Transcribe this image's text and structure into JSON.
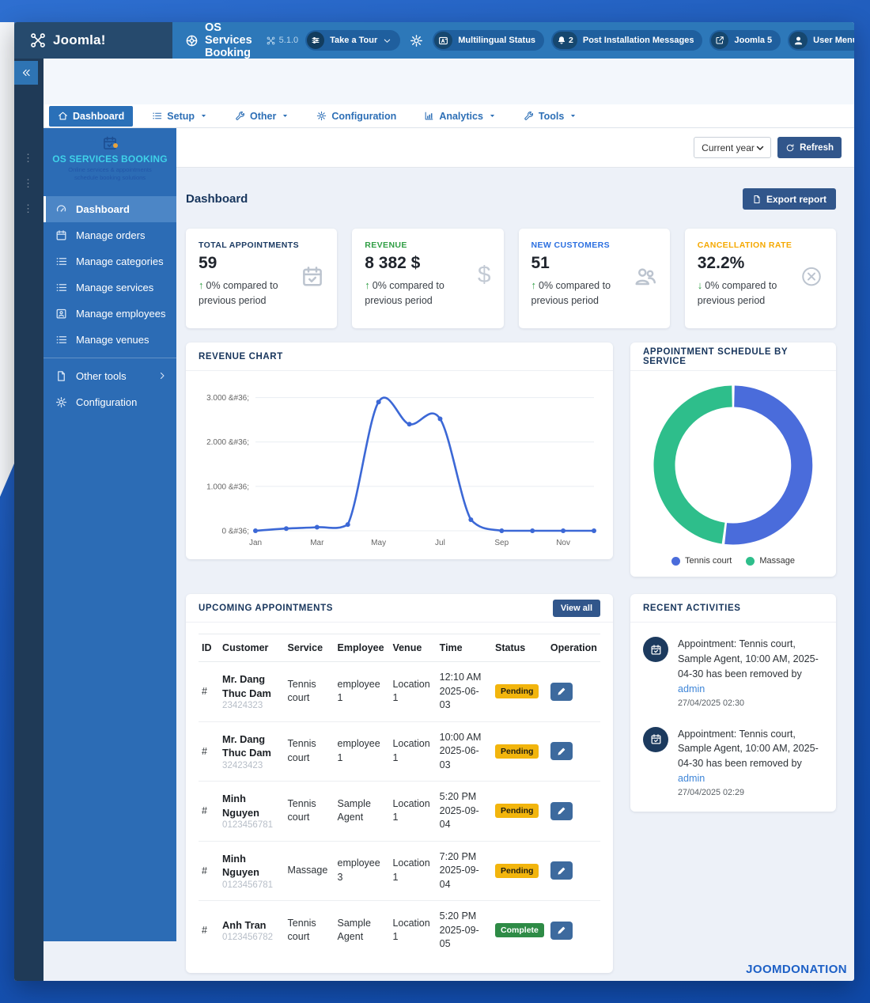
{
  "topbar": {
    "logo_text": "Joomla!",
    "app_title": "OS Services Booking",
    "version": "5.1.0",
    "tour_label": "Take a Tour",
    "multilingual_label": "Multilingual Status",
    "messages_count": "2",
    "messages_label": "Post Installation Messages",
    "joomla5_label": "Joomla 5",
    "user_menu_label": "User Menu"
  },
  "nav_tabs": [
    {
      "label": "Dashboard",
      "icon": "home",
      "caret": false,
      "active": true
    },
    {
      "label": "Setup",
      "icon": "list",
      "caret": true,
      "active": false
    },
    {
      "label": "Other",
      "icon": "wrench",
      "caret": true,
      "active": false
    },
    {
      "label": "Configuration",
      "icon": "gear",
      "caret": false,
      "active": false
    },
    {
      "label": "Analytics",
      "icon": "chart",
      "caret": true,
      "active": false
    },
    {
      "label": "Tools",
      "icon": "wrench",
      "caret": true,
      "active": false
    }
  ],
  "sidebar": {
    "brand_title": "OS SERVICES BOOKING",
    "brand_tagline_1": "Online services & appointments",
    "brand_tagline_2": "schedule booking solutions",
    "items": [
      {
        "label": "Dashboard",
        "icon": "gauge",
        "active": true,
        "chevron": false
      },
      {
        "label": "Manage orders",
        "icon": "calendar",
        "active": false,
        "chevron": false
      },
      {
        "label": "Manage categories",
        "icon": "list",
        "active": false,
        "chevron": false
      },
      {
        "label": "Manage services",
        "icon": "list",
        "active": false,
        "chevron": false
      },
      {
        "label": "Manage employees",
        "icon": "id-card",
        "active": false,
        "chevron": false
      },
      {
        "label": "Manage venues",
        "icon": "list",
        "active": false,
        "chevron": false
      },
      {
        "label": "Other tools",
        "icon": "file",
        "active": false,
        "chevron": true
      },
      {
        "label": "Configuration",
        "icon": "gear",
        "active": false,
        "chevron": false
      }
    ]
  },
  "toolbar": {
    "period_select": "Current year",
    "refresh_label": "Refresh"
  },
  "page": {
    "title": "Dashboard",
    "export_label": "Export report"
  },
  "stats": [
    {
      "label": "TOTAL APPOINTMENTS",
      "label_color": "#1c3b63",
      "value": "59",
      "arrow": "↑",
      "trend": "0% compared to previous period",
      "icon": "calendar-check"
    },
    {
      "label": "REVENUE",
      "label_color": "#2f9e44",
      "value": "8 382 $",
      "arrow": "↑",
      "trend": "0% compared to previous period",
      "icon": "dollar"
    },
    {
      "label": "NEW CUSTOMERS",
      "label_color": "#2b6fe0",
      "value": "51",
      "arrow": "↑",
      "trend": "0% compared to previous period",
      "icon": "users"
    },
    {
      "label": "CANCELLATION RATE",
      "label_color": "#f5a800",
      "value": "32.2%",
      "arrow": "↓",
      "trend": "0% compared to previous period",
      "icon": "x-circle"
    }
  ],
  "panels": {
    "revenue_title": "REVENUE CHART",
    "schedule_title": "APPOINTMENT SCHEDULE BY SERVICE",
    "upcoming_title": "UPCOMING APPOINTMENTS",
    "view_all_label": "View all",
    "recent_title": "RECENT ACTIVITIES"
  },
  "chart_data": [
    {
      "type": "line",
      "title": "REVENUE CHART",
      "x": [
        "Jan",
        "Feb",
        "Mar",
        "Apr",
        "May",
        "Jun",
        "Jul",
        "Aug",
        "Sep",
        "Oct",
        "Nov",
        "Dec"
      ],
      "values": [
        0,
        50,
        80,
        140,
        2900,
        2400,
        2520,
        250,
        0,
        0,
        0,
        0
      ],
      "ytick_values": [
        0,
        1000,
        2000,
        3000
      ],
      "ytick_labels": [
        "0 &#36;",
        "1.000 &#36;",
        "2.000 &#36;",
        "3.000 &#36;"
      ],
      "xticks_shown": [
        "Jan",
        "Mar",
        "May",
        "Jul",
        "Sep",
        "Nov"
      ],
      "ylim": [
        0,
        3100
      ],
      "grid": true,
      "line_color": "#3c68d6"
    },
    {
      "type": "pie",
      "donut": true,
      "title": "APPOINTMENT SCHEDULE BY SERVICE",
      "labels": [
        "Tennis court",
        "Massage"
      ],
      "values": [
        52,
        48
      ],
      "colors": [
        "#4a6cdb",
        "#2ebe8b"
      ],
      "legend_position": "bottom"
    }
  ],
  "appointments": {
    "columns": [
      "ID",
      "Customer",
      "Service",
      "Employee",
      "Venue",
      "Time",
      "Status",
      "Operation"
    ],
    "rows": [
      {
        "id": "#",
        "customer": "Mr. Dang Thuc Dam",
        "phone": "23424323",
        "service": "Tennis court",
        "employee": "employee 1",
        "venue": "Location 1",
        "time": "12:10 AM",
        "date": "2025-06-03",
        "status": "Pending"
      },
      {
        "id": "#",
        "customer": "Mr. Dang Thuc Dam",
        "phone": "32423423",
        "service": "Tennis court",
        "employee": "employee 1",
        "venue": "Location 1",
        "time": "10:00 AM",
        "date": "2025-06-03",
        "status": "Pending"
      },
      {
        "id": "#",
        "customer": "Minh Nguyen",
        "phone": "0123456781",
        "service": "Tennis court",
        "employee": "Sample Agent",
        "venue": "Location 1",
        "time": "5:20 PM",
        "date": "2025-09-04",
        "status": "Pending"
      },
      {
        "id": "#",
        "customer": "Minh Nguyen",
        "phone": "0123456781",
        "service": "Massage",
        "employee": "employee 3",
        "venue": "Location 1",
        "time": "7:20 PM",
        "date": "2025-09-04",
        "status": "Pending"
      },
      {
        "id": "#",
        "customer": "Anh Tran",
        "phone": "0123456782",
        "service": "Tennis court",
        "employee": "Sample Agent",
        "venue": "Location 1",
        "time": "5:20 PM",
        "date": "2025-09-05",
        "status": "Complete"
      }
    ]
  },
  "activities": {
    "items": [
      {
        "text": "Appointment: Tennis court, Sample Agent, 10:00 AM, 2025-04-30 has been removed by ",
        "link": "admin",
        "time": "27/04/2025 02:30"
      },
      {
        "text": "Appointment: Tennis court, Sample Agent, 10:00 AM, 2025-04-30 has been removed by ",
        "link": "admin",
        "time": "27/04/2025 02:29"
      }
    ]
  },
  "footer": {
    "brand": "JOOMDONATION"
  }
}
